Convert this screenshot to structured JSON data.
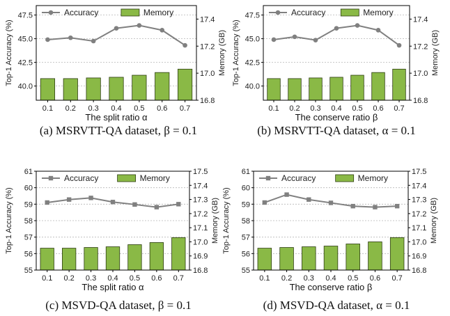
{
  "colors": {
    "bar": "#8ab946",
    "bar_edge": "#2d3d12",
    "line": "#808080",
    "grid": "#b5b5b5"
  },
  "chart_data": [
    {
      "type": "bar+line",
      "xlabel": "The split ratio α",
      "ylabel_left": "Top-1 Accuracy (%)",
      "ylabel_right": "Memory (GB)",
      "caption": "(a) MSRVTT-QA dataset, β = 0.1",
      "x": [
        "0.1",
        "0.2",
        "0.3",
        "0.4",
        "0.5",
        "0.6",
        "0.7"
      ],
      "left_ticks": [
        "47.5",
        "45.0",
        "42.5",
        "40.0"
      ],
      "right_ticks": [
        "17.4",
        "17.2",
        "17.0",
        "16.8"
      ],
      "ylim_left": [
        38.5,
        48.5
      ],
      "ylim_right": [
        16.8,
        17.5
      ],
      "legend": {
        "line": "Accuracy",
        "bar": "Memory",
        "placement": "top"
      },
      "series": [
        {
          "name": "Accuracy",
          "kind": "line",
          "marker": "circle",
          "axis": "left",
          "values": [
            44.9,
            45.1,
            44.75,
            46.1,
            46.4,
            45.9,
            44.3
          ]
        },
        {
          "name": "Memory",
          "kind": "bar",
          "axis": "right",
          "values": [
            16.96,
            16.96,
            16.965,
            16.97,
            16.985,
            17.005,
            17.03
          ]
        }
      ]
    },
    {
      "type": "bar+line",
      "xlabel": "The conserve ratio β",
      "ylabel_left": "Top-1 Accuracy (%)",
      "ylabel_right": "Memory (GB)",
      "caption": "(b) MSRVTT-QA dataset, α = 0.1",
      "x": [
        "0.1",
        "0.2",
        "0.3",
        "0.4",
        "0.5",
        "0.6",
        "0.7"
      ],
      "left_ticks": [
        "47.5",
        "45.0",
        "42.5",
        "40.0"
      ],
      "right_ticks": [
        "17.4",
        "17.2",
        "17.0",
        "16.8"
      ],
      "ylim_left": [
        38.5,
        48.5
      ],
      "ylim_right": [
        16.8,
        17.5
      ],
      "legend": {
        "line": "Accuracy",
        "bar": "Memory",
        "placement": "top"
      },
      "series": [
        {
          "name": "Accuracy",
          "kind": "line",
          "marker": "circle",
          "axis": "left",
          "values": [
            44.9,
            45.2,
            44.85,
            46.1,
            46.4,
            45.9,
            44.3
          ]
        },
        {
          "name": "Memory",
          "kind": "bar",
          "axis": "right",
          "values": [
            16.96,
            16.96,
            16.965,
            16.97,
            16.985,
            17.005,
            17.03
          ]
        }
      ]
    },
    {
      "type": "bar+line",
      "xlabel": "The split ratio α",
      "ylabel_left": "Top-1 Accuracy (%)",
      "ylabel_right": "Memory (GB)",
      "caption": "(c) MSVD-QA dataset, β = 0.1",
      "x": [
        "0.1",
        "0.2",
        "0.3",
        "0.4",
        "0.5",
        "0.6",
        "0.7"
      ],
      "left_ticks": [
        "61",
        "60",
        "59",
        "58",
        "57",
        "56",
        "55"
      ],
      "right_ticks": [
        "17.5",
        "17.4",
        "17.3",
        "17.2",
        "17.1",
        "17.0",
        "16.9",
        "16.8"
      ],
      "ylim_left": [
        55,
        61
      ],
      "ylim_right": [
        16.8,
        17.5
      ],
      "legend": {
        "line": "Accuracy",
        "bar": "Memory",
        "placement": "top"
      },
      "series": [
        {
          "name": "Accuracy",
          "kind": "line",
          "marker": "square",
          "axis": "left",
          "values": [
            59.1,
            59.28,
            59.38,
            59.13,
            58.98,
            58.82,
            59.0
          ]
        },
        {
          "name": "Memory",
          "kind": "bar",
          "axis": "right",
          "values": [
            16.955,
            16.955,
            16.96,
            16.965,
            16.98,
            16.995,
            17.03
          ]
        }
      ]
    },
    {
      "type": "bar+line",
      "xlabel": "The conserve ratio β",
      "ylabel_left": "Top-1 Accuracy (%)",
      "ylabel_right": "Memory (GB)",
      "caption": "(d) MSVD-QA dataset, α = 0.1",
      "x": [
        "0.1",
        "0.2",
        "0.3",
        "0.4",
        "0.5",
        "0.6",
        "0.7"
      ],
      "left_ticks": [
        "61",
        "60",
        "59",
        "58",
        "57",
        "56",
        "55"
      ],
      "right_ticks": [
        "17.5",
        "17.4",
        "17.3",
        "17.2",
        "17.1",
        "17.0",
        "16.9",
        "16.8"
      ],
      "ylim_left": [
        55,
        61
      ],
      "ylim_right": [
        16.8,
        17.5
      ],
      "legend": {
        "line": "Accuracy",
        "bar": "Memory",
        "placement": "top"
      },
      "series": [
        {
          "name": "Accuracy",
          "kind": "line",
          "marker": "square",
          "axis": "left",
          "values": [
            59.1,
            59.58,
            59.28,
            59.08,
            58.88,
            58.82,
            58.88
          ]
        },
        {
          "name": "Memory",
          "kind": "bar",
          "axis": "right",
          "values": [
            16.955,
            16.96,
            16.965,
            16.97,
            16.985,
            17.0,
            17.03
          ]
        }
      ]
    }
  ]
}
